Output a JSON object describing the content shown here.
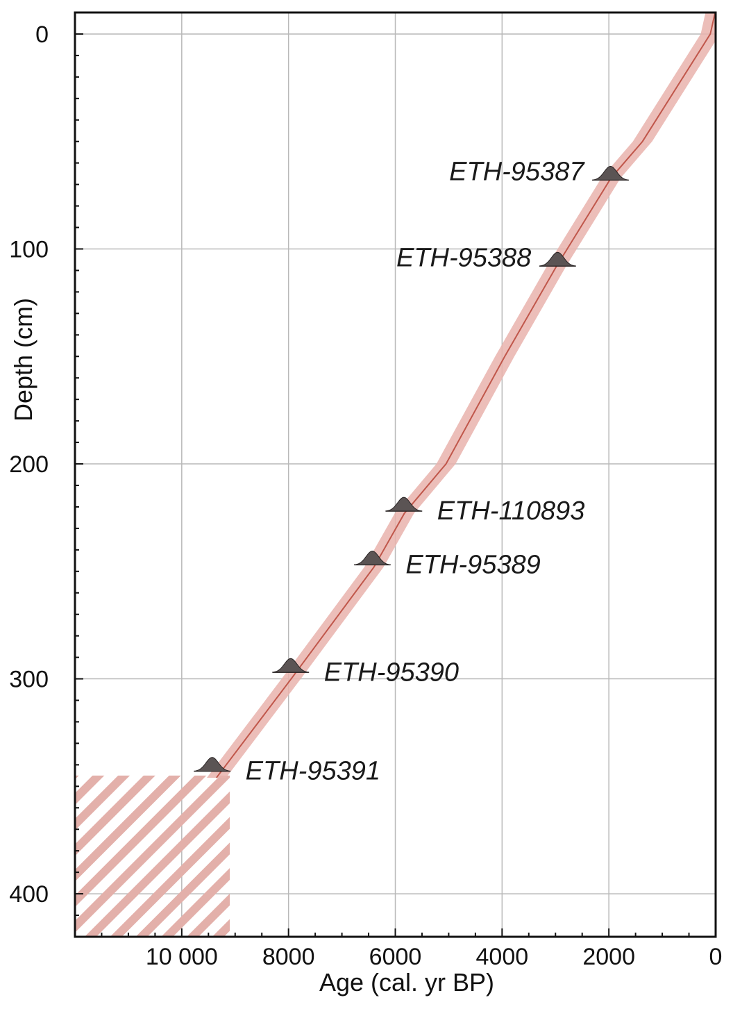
{
  "chart_data": {
    "type": "line",
    "title": "",
    "xlabel": "Age (cal. yr BP)",
    "ylabel": "Depth (cm)",
    "xlim": [
      12000,
      0
    ],
    "ylim": [
      420,
      -10
    ],
    "x_reversed": true,
    "y_reversed": true,
    "grid": true,
    "x_ticks": [
      10000,
      8000,
      6000,
      4000,
      2000,
      0
    ],
    "x_tick_labels": [
      "10 000",
      "8000",
      "6000",
      "4000",
      "2000",
      "0"
    ],
    "y_ticks": [
      0,
      100,
      200,
      300,
      400
    ],
    "y_tick_labels": [
      "0",
      "100",
      "200",
      "300",
      "400"
    ],
    "colors": {
      "model_line": "#c0574b",
      "model_band": "#e9b3ad",
      "dates": "#5b5454",
      "hatch": "#e3b0aa"
    },
    "age_model": {
      "depth": [
        -10,
        0,
        50,
        67,
        100,
        108,
        150,
        200,
        223,
        248,
        300,
        346
      ],
      "median_age": [
        10,
        100,
        1370,
        1960,
        2780,
        2980,
        3950,
        5050,
        5830,
        6400,
        7950,
        9350
      ],
      "band_half_width": 180
    },
    "dates": [
      {
        "label": "ETH-95387",
        "depth": 68,
        "age": 1970,
        "label_side": "left"
      },
      {
        "label": "ETH-95388",
        "depth": 108,
        "age": 2960,
        "label_side": "left"
      },
      {
        "label": "ETH-110893",
        "depth": 222,
        "age": 5840,
        "label_side": "right"
      },
      {
        "label": "ETH-95389",
        "depth": 247,
        "age": 6430,
        "label_side": "right"
      },
      {
        "label": "ETH-95390",
        "depth": 297,
        "age": 7960,
        "label_side": "right"
      },
      {
        "label": "ETH-95391",
        "depth": 343,
        "age": 9430,
        "label_side": "right"
      }
    ],
    "hatched_region": {
      "age_min": 9100,
      "age_max": 12000,
      "depth_min": 345,
      "depth_max": 420
    }
  }
}
